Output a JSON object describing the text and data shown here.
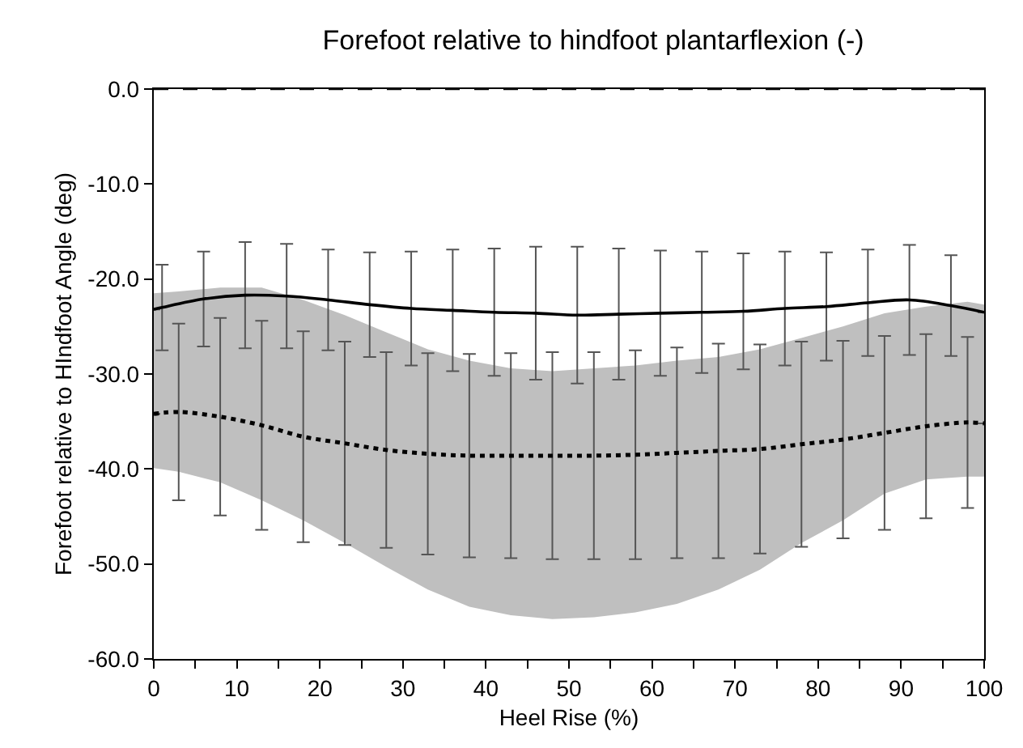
{
  "chart_data": {
    "type": "line",
    "title": "Forefoot relative to hindfoot plantarflexion (-)",
    "xlabel": "Heel Rise (%)",
    "ylabel": "Forefoot relative to HIndfoot Angle (deg)",
    "xlim": [
      0,
      100
    ],
    "ylim": [
      -60,
      0
    ],
    "xticks": [
      0,
      {
        "value": 5,
        "label": null
      },
      10,
      {
        "value": 15,
        "label": null
      },
      20,
      {
        "value": 25,
        "label": null
      },
      30,
      {
        "value": 35,
        "label": null
      },
      40,
      {
        "value": 45,
        "label": null
      },
      50,
      {
        "value": 55,
        "label": null
      },
      60,
      {
        "value": 65,
        "label": null
      },
      70,
      {
        "value": 75,
        "label": null
      },
      80,
      {
        "value": 85,
        "label": null
      },
      90,
      {
        "value": 95,
        "label": null
      },
      100
    ],
    "yticks": [
      {
        "value": -60,
        "label": "-60.0"
      },
      {
        "value": -50,
        "label": "-50.0"
      },
      {
        "value": -40,
        "label": "-40.0"
      },
      {
        "value": -30,
        "label": "-30.0"
      },
      {
        "value": -20,
        "label": "-20.0"
      },
      {
        "value": -10,
        "label": "-10.0"
      },
      {
        "value": 0,
        "label": "0.0"
      }
    ],
    "marker": "none",
    "ref_lines": [
      {
        "axis": "y",
        "value": 0,
        "label": null,
        "color": "#000000",
        "line_style": "dashed"
      }
    ],
    "series": [
      {
        "color": "#000000",
        "line_style": "dotted",
        "x": [
          0,
          3,
          8,
          13,
          18,
          23,
          28,
          33,
          38,
          43,
          48,
          53,
          58,
          63,
          68,
          73,
          78,
          83,
          88,
          93,
          98,
          100
        ],
        "values": [
          -34.2,
          -34.0,
          -34.5,
          -35.4,
          -36.6,
          -37.3,
          -38.0,
          -38.4,
          -38.6,
          -38.6,
          -38.6,
          -38.6,
          -38.5,
          -38.3,
          -38.1,
          -37.9,
          -37.4,
          -36.9,
          -36.2,
          -35.5,
          -35.1,
          -35.2
        ],
        "errors": [
          null,
          9.3,
          10.4,
          11.0,
          11.1,
          10.7,
          10.3,
          10.6,
          10.7,
          10.8,
          10.9,
          10.9,
          11.0,
          11.1,
          11.3,
          11.0,
          10.8,
          10.4,
          10.2,
          9.7,
          9.0,
          null
        ],
        "upper": [
          -21.5,
          -21.3,
          -20.9,
          -20.9,
          -22.2,
          -23.8,
          -25.6,
          -27.4,
          -28.6,
          -29.4,
          -29.7,
          -29.4,
          -29.1,
          -28.6,
          -28.2,
          -27.4,
          -26.2,
          -25.0,
          -23.6,
          -22.9,
          -22.4,
          -22.7
        ],
        "lower": [
          -39.9,
          -40.3,
          -41.4,
          -43.3,
          -45.4,
          -47.8,
          -50.3,
          -52.7,
          -54.5,
          -55.4,
          -55.8,
          -55.6,
          -55.1,
          -54.2,
          -52.7,
          -50.6,
          -47.8,
          -45.4,
          -42.6,
          -41.1,
          -40.8,
          -40.8
        ]
      },
      {
        "color": "#000000",
        "line_style": "solid",
        "x": [
          0,
          1,
          6,
          11,
          16,
          21,
          26,
          31,
          36,
          41,
          46,
          51,
          56,
          61,
          66,
          71,
          76,
          81,
          86,
          91,
          96,
          100
        ],
        "values": [
          -23.2,
          -23.0,
          -22.1,
          -21.7,
          -21.8,
          -22.2,
          -22.7,
          -23.1,
          -23.3,
          -23.5,
          -23.6,
          -23.8,
          -23.7,
          -23.6,
          -23.5,
          -23.4,
          -23.1,
          -22.9,
          -22.5,
          -22.2,
          -22.8,
          -23.5
        ],
        "errors": [
          null,
          4.5,
          5.0,
          5.6,
          5.5,
          5.3,
          5.5,
          6.0,
          6.4,
          6.7,
          7.0,
          7.2,
          6.9,
          6.6,
          6.4,
          6.1,
          6.0,
          5.7,
          5.6,
          5.8,
          5.3,
          null
        ]
      }
    ]
  }
}
